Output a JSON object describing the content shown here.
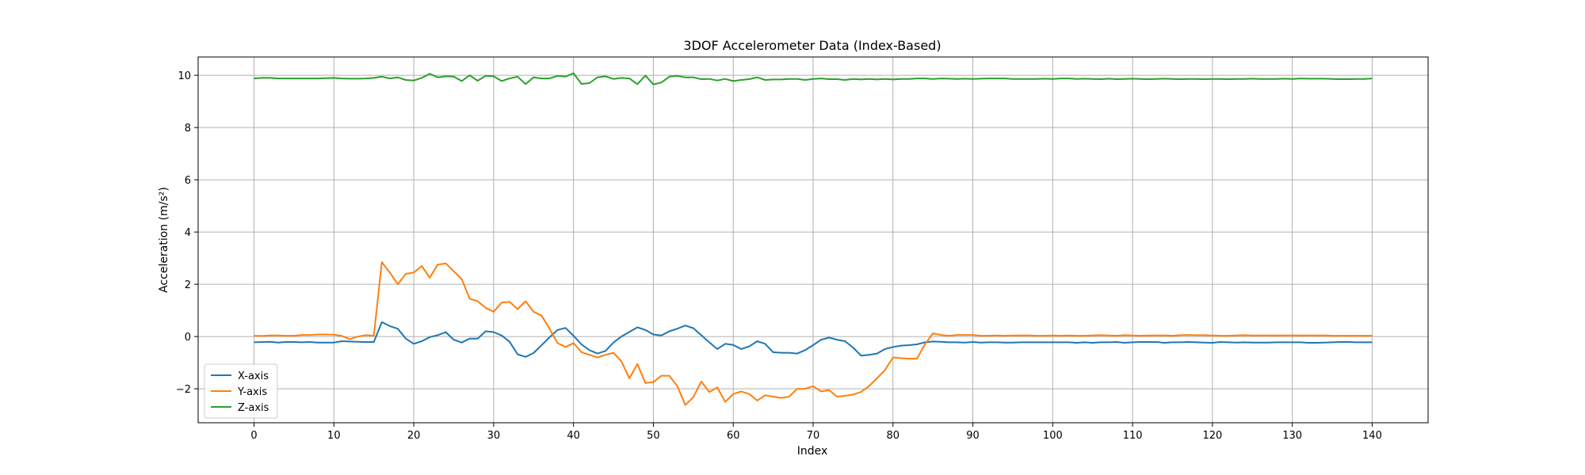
{
  "chart_data": {
    "type": "line",
    "title": "3DOF Accelerometer Data (Index-Based)",
    "xlabel": "Index",
    "ylabel": "Acceleration (m/s²)",
    "xlim": [
      -7,
      147
    ],
    "ylim": [
      -3.3,
      10.7
    ],
    "xticks": [
      0,
      10,
      20,
      30,
      40,
      50,
      60,
      70,
      80,
      90,
      100,
      110,
      120,
      130,
      140
    ],
    "yticks": [
      -2,
      0,
      2,
      4,
      6,
      8,
      10
    ],
    "xtick_labels": [
      "0",
      "10",
      "20",
      "30",
      "40",
      "50",
      "60",
      "70",
      "80",
      "90",
      "100",
      "110",
      "120",
      "130",
      "140"
    ],
    "ytick_labels": [
      "−2",
      "0",
      "2",
      "4",
      "6",
      "8",
      "10"
    ],
    "grid": true,
    "legend_position": "lower-left",
    "x": [
      0,
      1,
      2,
      3,
      4,
      5,
      6,
      7,
      8,
      9,
      10,
      11,
      12,
      13,
      14,
      15,
      16,
      17,
      18,
      19,
      20,
      21,
      22,
      23,
      24,
      25,
      26,
      27,
      28,
      29,
      30,
      31,
      32,
      33,
      34,
      35,
      36,
      37,
      38,
      39,
      40,
      41,
      42,
      43,
      44,
      45,
      46,
      47,
      48,
      49,
      50,
      51,
      52,
      53,
      54,
      55,
      56,
      57,
      58,
      59,
      60,
      61,
      62,
      63,
      64,
      65,
      66,
      67,
      68,
      69,
      70,
      71,
      72,
      73,
      74,
      75,
      76,
      77,
      78,
      79,
      80,
      81,
      82,
      83,
      84,
      85,
      86,
      87,
      88,
      89,
      90,
      91,
      92,
      93,
      94,
      95,
      96,
      97,
      98,
      99,
      100,
      101,
      102,
      103,
      104,
      105,
      106,
      107,
      108,
      109,
      110,
      111,
      112,
      113,
      114,
      115,
      116,
      117,
      118,
      119,
      120,
      121,
      122,
      123,
      124,
      125,
      126,
      127,
      128,
      129,
      130,
      131,
      132,
      133,
      134,
      135,
      136,
      137,
      138,
      139,
      140
    ],
    "series": [
      {
        "name": "X-axis",
        "color": "#1f77b4",
        "values": [
          -0.22,
          -0.21,
          -0.2,
          -0.23,
          -0.21,
          -0.21,
          -0.22,
          -0.21,
          -0.23,
          -0.23,
          -0.23,
          -0.18,
          -0.19,
          -0.2,
          -0.21,
          -0.21,
          0.55,
          0.4,
          0.3,
          -0.08,
          -0.28,
          -0.18,
          -0.02,
          0.05,
          0.17,
          -0.12,
          -0.23,
          -0.08,
          -0.08,
          0.2,
          0.17,
          0.04,
          -0.2,
          -0.68,
          -0.78,
          -0.63,
          -0.33,
          -0.03,
          0.25,
          0.33,
          0.03,
          -0.3,
          -0.52,
          -0.65,
          -0.55,
          -0.23,
          0.0,
          0.18,
          0.35,
          0.25,
          0.08,
          0.04,
          0.2,
          0.3,
          0.42,
          0.32,
          0.05,
          -0.22,
          -0.48,
          -0.28,
          -0.32,
          -0.48,
          -0.38,
          -0.18,
          -0.28,
          -0.6,
          -0.62,
          -0.62,
          -0.65,
          -0.52,
          -0.33,
          -0.12,
          -0.04,
          -0.12,
          -0.18,
          -0.42,
          -0.73,
          -0.7,
          -0.65,
          -0.48,
          -0.4,
          -0.35,
          -0.33,
          -0.3,
          -0.22,
          -0.19,
          -0.2,
          -0.22,
          -0.22,
          -0.23,
          -0.21,
          -0.23,
          -0.22,
          -0.22,
          -0.23,
          -0.23,
          -0.22,
          -0.22,
          -0.22,
          -0.22,
          -0.22,
          -0.22,
          -0.22,
          -0.24,
          -0.22,
          -0.24,
          -0.22,
          -0.22,
          -0.21,
          -0.24,
          -0.22,
          -0.21,
          -0.21,
          -0.21,
          -0.24,
          -0.22,
          -0.22,
          -0.21,
          -0.22,
          -0.23,
          -0.24,
          -0.21,
          -0.22,
          -0.23,
          -0.22,
          -0.23,
          -0.23,
          -0.23,
          -0.22,
          -0.22,
          -0.22,
          -0.22,
          -0.24,
          -0.24,
          -0.23,
          -0.22,
          -0.21,
          -0.21,
          -0.22,
          -0.22,
          -0.22
        ]
      },
      {
        "name": "Y-axis",
        "color": "#ff7f0e",
        "values": [
          0.03,
          0.02,
          0.04,
          0.04,
          0.03,
          0.03,
          0.06,
          0.06,
          0.08,
          0.08,
          0.07,
          0.02,
          -0.1,
          0.0,
          0.05,
          0.03,
          2.85,
          2.45,
          2.0,
          2.4,
          2.45,
          2.7,
          2.25,
          2.75,
          2.8,
          2.5,
          2.2,
          1.45,
          1.35,
          1.1,
          0.95,
          1.3,
          1.33,
          1.05,
          1.35,
          0.95,
          0.8,
          0.3,
          -0.25,
          -0.4,
          -0.25,
          -0.6,
          -0.7,
          -0.8,
          -0.7,
          -0.62,
          -0.95,
          -1.6,
          -1.05,
          -1.78,
          -1.75,
          -1.5,
          -1.5,
          -1.9,
          -2.62,
          -2.32,
          -1.72,
          -2.12,
          -1.95,
          -2.5,
          -2.2,
          -2.1,
          -2.2,
          -2.45,
          -2.25,
          -2.3,
          -2.35,
          -2.3,
          -2.0,
          -2.0,
          -1.9,
          -2.1,
          -2.05,
          -2.3,
          -2.27,
          -2.22,
          -2.12,
          -1.9,
          -1.6,
          -1.28,
          -0.8,
          -0.83,
          -0.85,
          -0.85,
          -0.3,
          0.12,
          0.06,
          0.03,
          0.06,
          0.06,
          0.06,
          0.03,
          0.03,
          0.04,
          0.03,
          0.04,
          0.04,
          0.04,
          0.03,
          0.03,
          0.04,
          0.03,
          0.04,
          0.03,
          0.03,
          0.04,
          0.05,
          0.04,
          0.03,
          0.05,
          0.04,
          0.03,
          0.04,
          0.04,
          0.04,
          0.03,
          0.05,
          0.06,
          0.05,
          0.05,
          0.04,
          0.03,
          0.03,
          0.04,
          0.05,
          0.04,
          0.04,
          0.04,
          0.04,
          0.04,
          0.04,
          0.04,
          0.04,
          0.04,
          0.04,
          0.03,
          0.03,
          0.03,
          0.03,
          0.03,
          0.03
        ]
      },
      {
        "name": "Z-axis",
        "color": "#2ca02c",
        "values": [
          9.88,
          9.9,
          9.9,
          9.88,
          9.88,
          9.88,
          9.88,
          9.88,
          9.88,
          9.89,
          9.9,
          9.88,
          9.87,
          9.87,
          9.88,
          9.9,
          9.95,
          9.88,
          9.92,
          9.82,
          9.8,
          9.9,
          10.06,
          9.92,
          9.96,
          9.95,
          9.78,
          10.0,
          9.79,
          9.98,
          9.96,
          9.78,
          9.88,
          9.95,
          9.66,
          9.92,
          9.88,
          9.88,
          9.98,
          9.95,
          10.08,
          9.67,
          9.7,
          9.92,
          9.96,
          9.86,
          9.9,
          9.88,
          9.66,
          9.99,
          9.65,
          9.72,
          9.95,
          9.98,
          9.92,
          9.92,
          9.85,
          9.86,
          9.8,
          9.86,
          9.78,
          9.82,
          9.85,
          9.92,
          9.82,
          9.84,
          9.84,
          9.86,
          9.86,
          9.82,
          9.86,
          9.88,
          9.85,
          9.85,
          9.82,
          9.86,
          9.84,
          9.86,
          9.84,
          9.86,
          9.84,
          9.86,
          9.86,
          9.88,
          9.88,
          9.86,
          9.88,
          9.87,
          9.86,
          9.87,
          9.86,
          9.87,
          9.88,
          9.88,
          9.88,
          9.86,
          9.86,
          9.86,
          9.86,
          9.87,
          9.86,
          9.88,
          9.88,
          9.86,
          9.87,
          9.86,
          9.85,
          9.87,
          9.85,
          9.86,
          9.87,
          9.86,
          9.85,
          9.86,
          9.87,
          9.86,
          9.85,
          9.86,
          9.86,
          9.85,
          9.86,
          9.86,
          9.85,
          9.86,
          9.86,
          9.87,
          9.86,
          9.86,
          9.86,
          9.87,
          9.86,
          9.88,
          9.87,
          9.87,
          9.87,
          9.86,
          9.85,
          9.85,
          9.86,
          9.86,
          9.88
        ]
      }
    ]
  }
}
